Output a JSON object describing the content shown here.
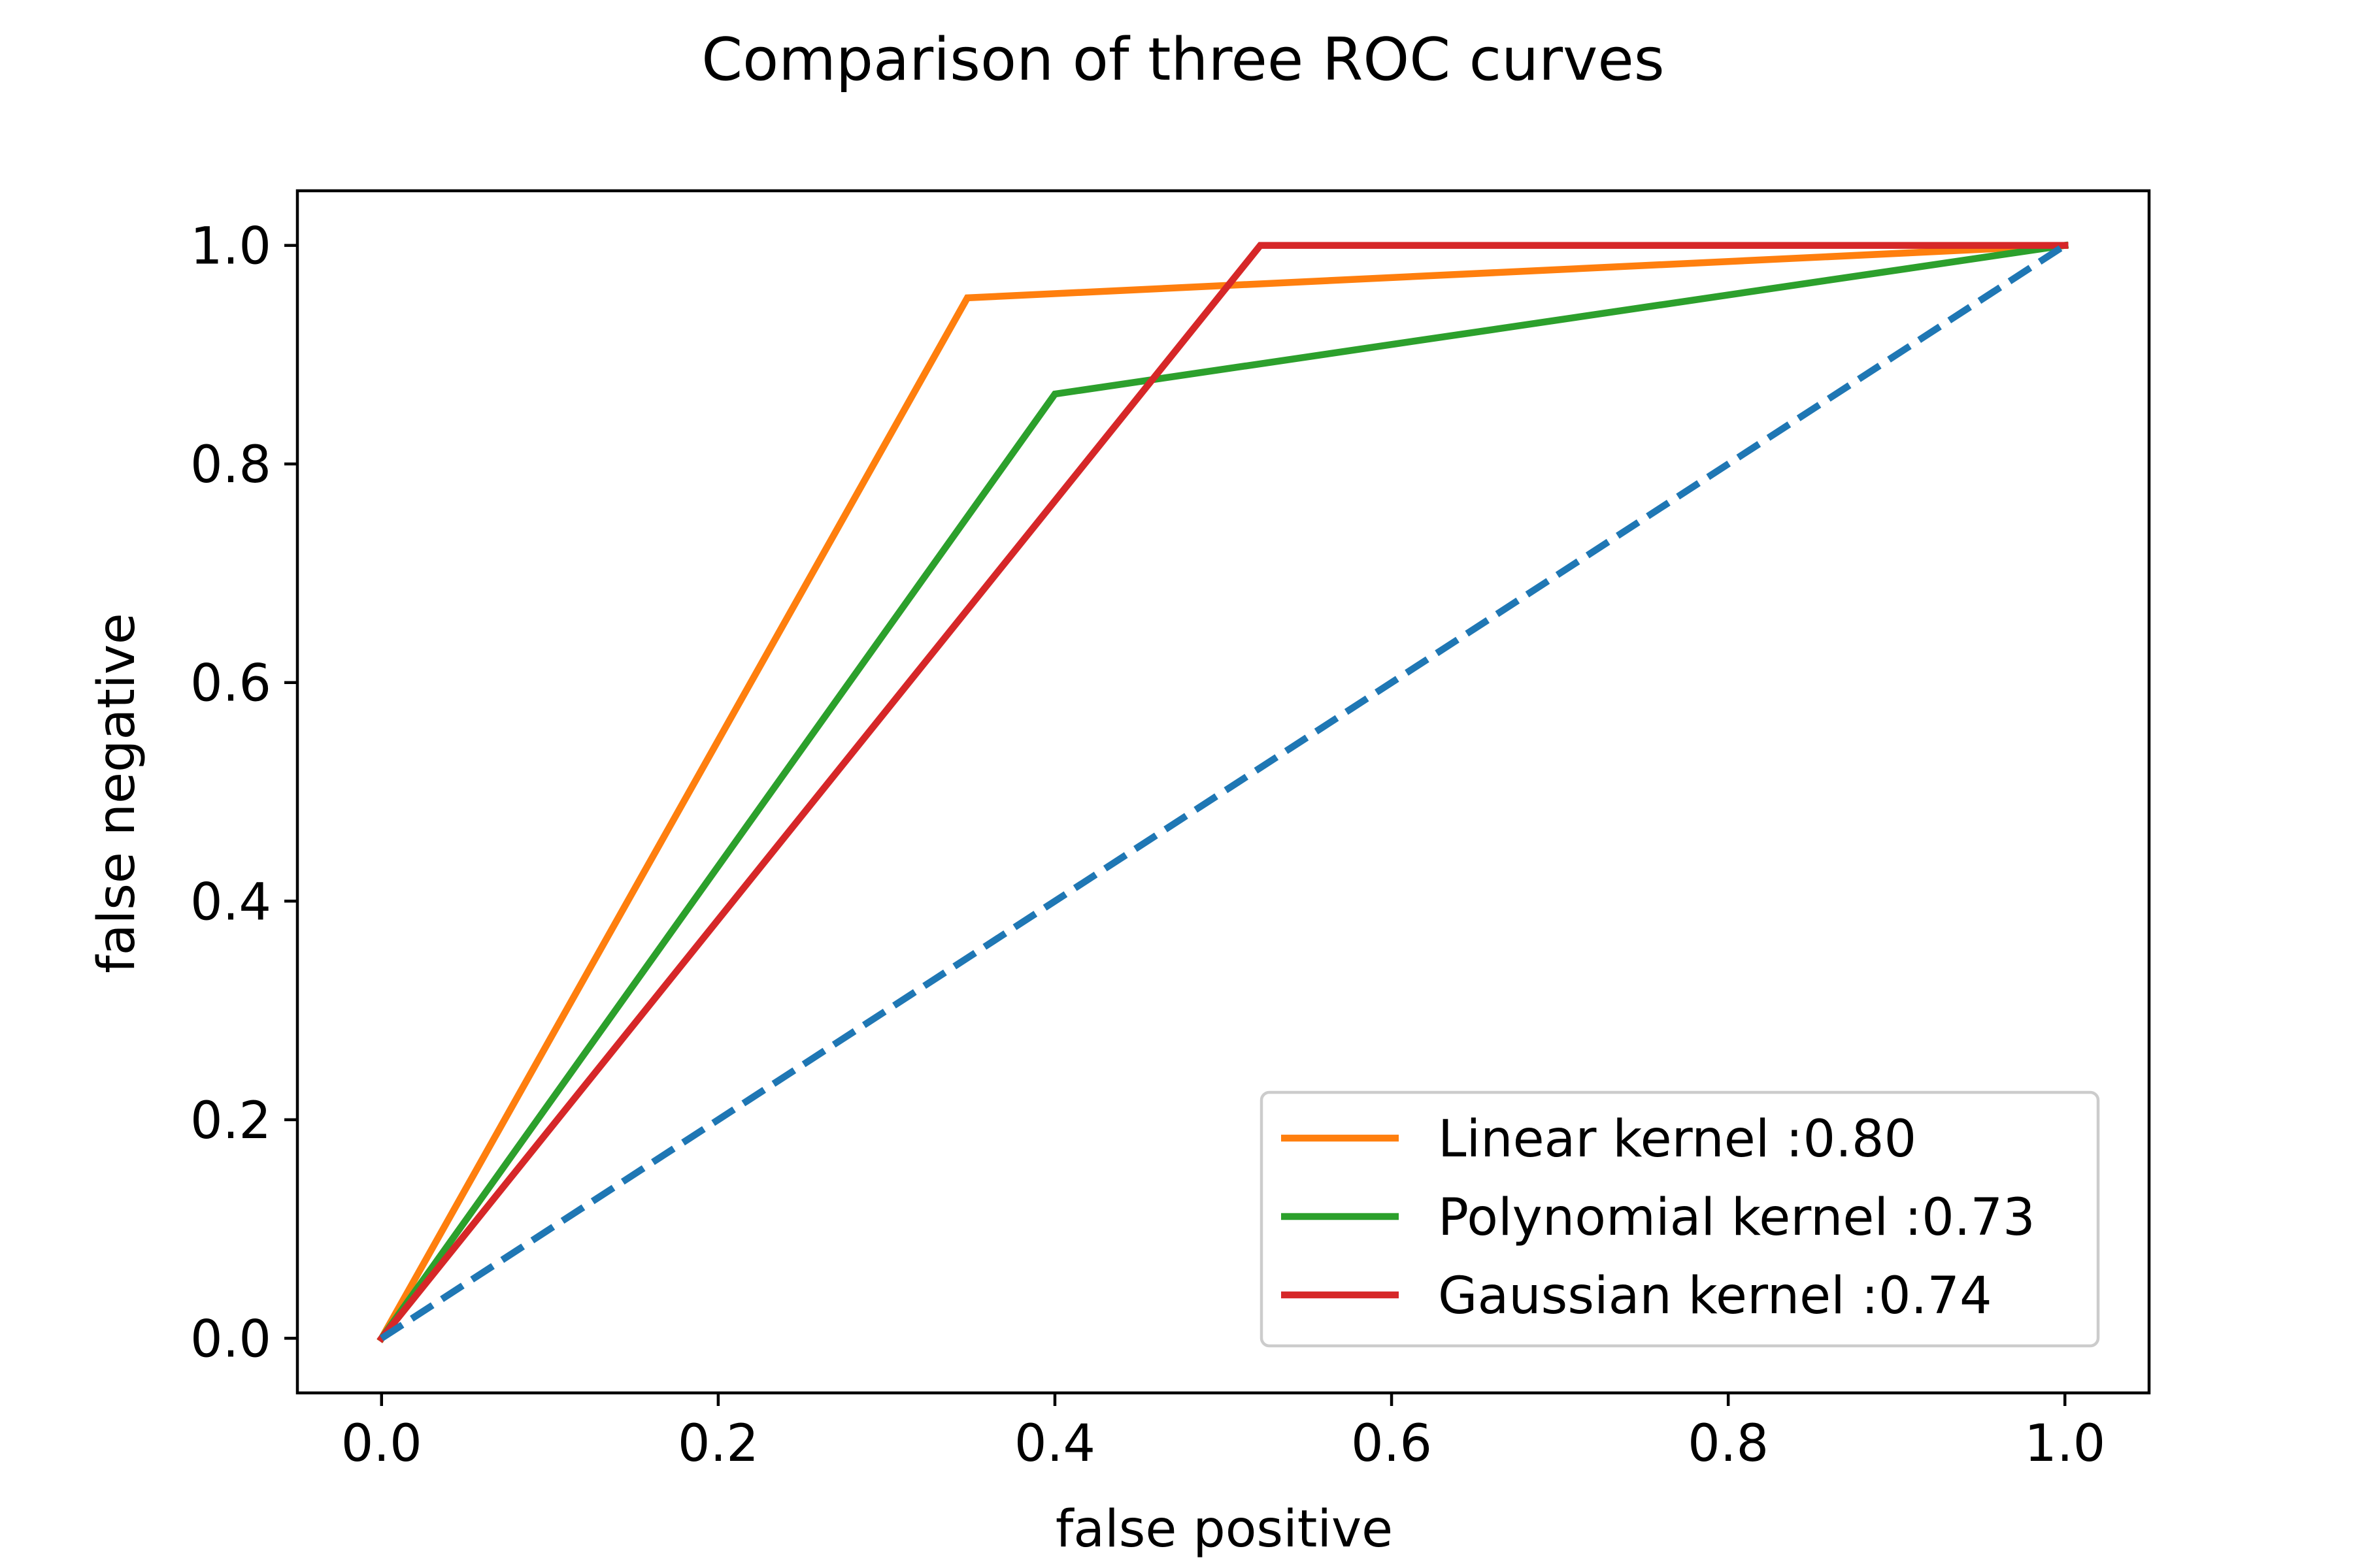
{
  "chart_data": {
    "type": "line",
    "title": "Comparison of three ROC curves",
    "xlabel": "false positive",
    "ylabel": "false negative",
    "xlim": [
      -0.05,
      1.05
    ],
    "ylim": [
      -0.05,
      1.05
    ],
    "x_ticks": [
      0.0,
      0.2,
      0.4,
      0.6,
      0.8,
      1.0
    ],
    "y_ticks": [
      0.0,
      0.2,
      0.4,
      0.6,
      0.8,
      1.0
    ],
    "x_tick_labels": [
      "0.0",
      "0.2",
      "0.4",
      "0.6",
      "0.8",
      "1.0"
    ],
    "y_tick_labels": [
      "0.0",
      "0.2",
      "0.4",
      "0.6",
      "0.8",
      "1.0"
    ],
    "grid": false,
    "legend_position": "lower-right",
    "series": [
      {
        "name": "Linear kernel :0.80",
        "color": "#ff7f0e",
        "style": "solid",
        "x": [
          0.0,
          0.348,
          1.0
        ],
        "y": [
          0.0,
          0.952,
          1.0
        ]
      },
      {
        "name": "Polynomial kernel :0.73",
        "color": "#2ca02c",
        "style": "solid",
        "x": [
          0.0,
          0.4,
          1.0
        ],
        "y": [
          0.0,
          0.864,
          1.0
        ]
      },
      {
        "name": "Gaussian kernel :0.74",
        "color": "#d62728",
        "style": "solid",
        "x": [
          0.0,
          0.522,
          1.0
        ],
        "y": [
          0.0,
          1.0,
          1.0
        ]
      },
      {
        "color": "#1f77b4",
        "style": "dashed",
        "x": [
          0.0,
          1.0
        ],
        "y": [
          0.0,
          1.0
        ]
      }
    ]
  }
}
